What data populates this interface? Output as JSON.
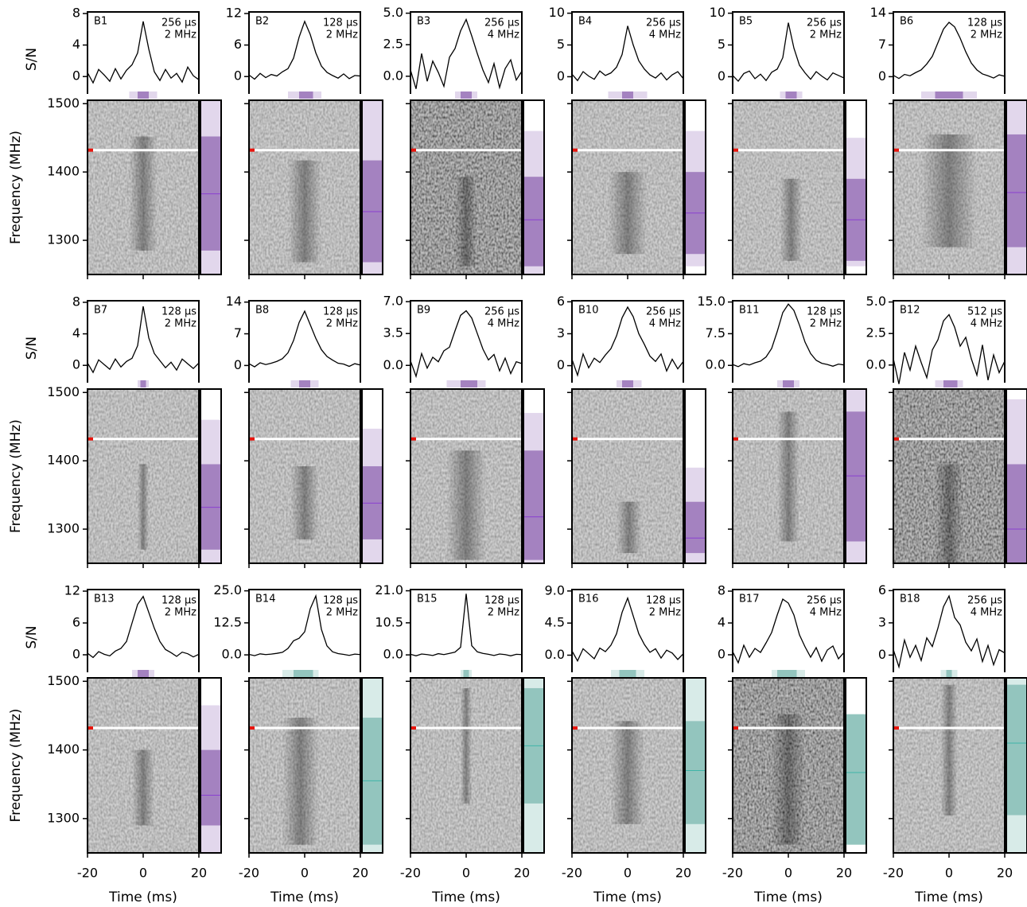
{
  "shared": {
    "x": [
      -20,
      -18,
      -16,
      -14,
      -12,
      -10,
      -8,
      -6,
      -4,
      -2,
      0,
      2,
      4,
      6,
      8,
      10,
      12,
      14,
      16,
      18,
      20
    ],
    "xlim": [
      -20,
      20
    ],
    "xticks": [
      -20,
      0,
      20
    ],
    "xlabel": "Time (ms)",
    "ylabel": "S/N",
    "freq_label": "Frequency (MHz)",
    "freq_lim": [
      1250,
      1505
    ],
    "freq_ticks": [
      1300,
      1400,
      1500
    ],
    "mask_freq": 1432
  },
  "chart_data": [
    {
      "type": "line",
      "title": "B1",
      "time_resolution": "256 µs",
      "freq_resolution": "2 MHz",
      "ylim": [
        -2.2,
        8.2
      ],
      "yticks": [
        0,
        4,
        8
      ],
      "values": [
        0.5,
        -0.8,
        0.9,
        0.2,
        -0.6,
        1.0,
        -0.3,
        0.8,
        1.5,
        3.0,
        7.0,
        3.5,
        0.6,
        -0.5,
        0.9,
        -0.2,
        0.4,
        -0.7,
        1.2,
        0.1,
        -0.4
      ],
      "time_window": [
        -2,
        2
      ],
      "time_window_outer": [
        -5,
        5
      ],
      "band": [
        1285,
        1452
      ],
      "band_outer": [
        1250,
        1505
      ],
      "center_freq": 1368,
      "color": "#a482c0",
      "light_color": "#e2d7ec"
    },
    {
      "type": "line",
      "title": "B2",
      "time_resolution": "128 µs",
      "freq_resolution": "2 MHz",
      "ylim": [
        -3.3,
        12.3
      ],
      "yticks": [
        0,
        6,
        12
      ],
      "values": [
        0.3,
        -0.5,
        0.6,
        -0.2,
        0.4,
        0.1,
        0.9,
        1.5,
        3.5,
        7.5,
        10.5,
        8.0,
        4.5,
        2.0,
        0.8,
        0.2,
        -0.3,
        0.5,
        -0.4,
        0.2,
        0.1
      ],
      "time_window": [
        -2,
        3
      ],
      "time_window_outer": [
        -6,
        6
      ],
      "band": [
        1268,
        1417
      ],
      "band_outer": [
        1250,
        1505
      ],
      "center_freq": 1342,
      "color": "#a482c0",
      "light_color": "#e2d7ec"
    },
    {
      "type": "line",
      "title": "B3",
      "time_resolution": "256 µs",
      "freq_resolution": "4 MHz",
      "ylim": [
        -1.4,
        5.1
      ],
      "yticks": [
        {
          "value": 0,
          "label": "0.0"
        },
        2.5,
        {
          "value": 5,
          "label": "5.0"
        }
      ],
      "values": [
        0.5,
        -1.0,
        1.8,
        -0.4,
        1.2,
        0.3,
        -0.8,
        1.5,
        2.2,
        3.6,
        4.5,
        3.2,
        1.8,
        0.5,
        -0.5,
        1.0,
        -0.9,
        0.6,
        1.3,
        -0.3,
        0.4
      ],
      "time_window": [
        -2,
        2
      ],
      "time_window_outer": [
        -4,
        4
      ],
      "band": [
        1262,
        1393
      ],
      "band_outer": [
        1250,
        1460
      ],
      "center_freq": 1330,
      "color": "#a482c0",
      "light_color": "#e2d7ec"
    },
    {
      "type": "line",
      "title": "B4",
      "time_resolution": "256 µs",
      "freq_resolution": "4 MHz",
      "ylim": [
        -2.7,
        10.2
      ],
      "yticks": [
        0,
        5,
        10
      ],
      "values": [
        0.4,
        -0.6,
        0.8,
        0.1,
        -0.4,
        0.9,
        0.2,
        0.6,
        1.5,
        3.5,
        8.0,
        5.0,
        2.5,
        1.2,
        0.3,
        -0.2,
        0.6,
        -0.5,
        0.3,
        0.8,
        -0.3
      ],
      "time_window": [
        -2,
        2
      ],
      "time_window_outer": [
        -7,
        7
      ],
      "band": [
        1280,
        1400
      ],
      "band_outer": [
        1262,
        1460
      ],
      "center_freq": 1340,
      "color": "#a482c0",
      "light_color": "#e2d7ec"
    },
    {
      "type": "line",
      "title": "B5",
      "time_resolution": "256 µs",
      "freq_resolution": "2 MHz",
      "ylim": [
        -2.7,
        10.2
      ],
      "yticks": [
        0,
        5,
        10
      ],
      "values": [
        0.2,
        -0.7,
        0.5,
        0.9,
        -0.3,
        0.4,
        -0.6,
        0.7,
        1.2,
        3.0,
        8.5,
        4.5,
        1.8,
        0.6,
        -0.4,
        0.8,
        0.1,
        -0.5,
        0.6,
        0.2,
        -0.2
      ],
      "time_window": [
        -1,
        3
      ],
      "time_window_outer": [
        -3,
        5
      ],
      "band": [
        1270,
        1390
      ],
      "band_outer": [
        1262,
        1450
      ],
      "center_freq": 1330,
      "color": "#a482c0",
      "light_color": "#e2d7ec"
    },
    {
      "type": "line",
      "title": "B6",
      "time_resolution": "128 µs",
      "freq_resolution": "2 MHz",
      "ylim": [
        -3.8,
        14.3
      ],
      "yticks": [
        0,
        7,
        14
      ],
      "values": [
        0.3,
        -0.4,
        0.5,
        0.2,
        0.9,
        1.5,
        2.8,
        4.5,
        7.5,
        10.5,
        12.0,
        11.0,
        8.5,
        5.5,
        3.0,
        1.5,
        0.6,
        0.2,
        -0.3,
        0.4,
        0.1
      ],
      "time_window": [
        -5,
        5
      ],
      "time_window_outer": [
        -10,
        10
      ],
      "band": [
        1290,
        1455
      ],
      "band_outer": [
        1250,
        1505
      ],
      "center_freq": 1370,
      "color": "#a482c0",
      "light_color": "#e2d7ec"
    },
    {
      "type": "line",
      "title": "B7",
      "time_resolution": "128 µs",
      "freq_resolution": "2 MHz",
      "ylim": [
        -2.2,
        8.2
      ],
      "yticks": [
        0,
        4,
        8
      ],
      "values": [
        0.3,
        -0.9,
        0.7,
        0.1,
        -0.5,
        0.8,
        -0.2,
        0.5,
        0.9,
        2.5,
        7.5,
        3.5,
        1.5,
        0.6,
        -0.3,
        0.4,
        -0.6,
        0.8,
        0.2,
        -0.4,
        0.3
      ],
      "time_window": [
        -1,
        1
      ],
      "time_window_outer": [
        -2,
        2
      ],
      "band": [
        1270,
        1395
      ],
      "band_outer": [
        1250,
        1460
      ],
      "center_freq": 1332,
      "color": "#a482c0",
      "light_color": "#e2d7ec"
    },
    {
      "type": "line",
      "title": "B8",
      "time_resolution": "128 µs",
      "freq_resolution": "2 MHz",
      "ylim": [
        -3.8,
        14.3
      ],
      "yticks": [
        0,
        7,
        14
      ],
      "values": [
        0.4,
        -0.3,
        0.6,
        0.2,
        0.5,
        0.9,
        1.5,
        2.8,
        5.5,
        9.5,
        12.0,
        9.0,
        6.0,
        3.5,
        2.0,
        1.2,
        0.5,
        0.3,
        -0.2,
        0.4,
        0.1
      ],
      "time_window": [
        -2,
        2
      ],
      "time_window_outer": [
        -5,
        5
      ],
      "band": [
        1285,
        1392
      ],
      "band_outer": [
        1250,
        1447
      ],
      "center_freq": 1338,
      "color": "#a482c0",
      "light_color": "#e2d7ec"
    },
    {
      "type": "line",
      "title": "B9",
      "time_resolution": "256 µs",
      "freq_resolution": "4 MHz",
      "ylim": [
        -1.9,
        7.1
      ],
      "yticks": [
        {
          "value": 0,
          "label": "0.0"
        },
        3.5,
        {
          "value": 7,
          "label": "7.0"
        }
      ],
      "values": [
        0.5,
        -1.2,
        1.3,
        -0.3,
        0.9,
        0.4,
        1.6,
        2.0,
        3.8,
        5.5,
        6.0,
        5.2,
        3.5,
        1.8,
        0.6,
        1.2,
        -0.6,
        0.8,
        -0.9,
        0.4,
        0.2
      ],
      "time_window": [
        -2,
        4
      ],
      "time_window_outer": [
        -7,
        7
      ],
      "band": [
        1255,
        1415
      ],
      "band_outer": [
        1250,
        1470
      ],
      "center_freq": 1318,
      "color": "#a482c0",
      "light_color": "#e2d7ec"
    },
    {
      "type": "line",
      "title": "B10",
      "time_resolution": "256 µs",
      "freq_resolution": "4 MHz",
      "ylim": [
        -1.6,
        6.1
      ],
      "yticks": [
        0,
        3,
        6
      ],
      "values": [
        0.6,
        -0.9,
        1.1,
        -0.2,
        0.7,
        0.3,
        1.0,
        1.6,
        2.8,
        4.5,
        5.5,
        4.6,
        3.0,
        2.0,
        0.9,
        0.4,
        1.1,
        -0.5,
        0.6,
        -0.3,
        0.4
      ],
      "time_window": [
        -2,
        2
      ],
      "time_window_outer": [
        -4,
        5
      ],
      "band": [
        1265,
        1340
      ],
      "band_outer": [
        1250,
        1390
      ],
      "center_freq": 1287,
      "color": "#a482c0",
      "light_color": "#e2d7ec"
    },
    {
      "type": "line",
      "title": "B11",
      "time_resolution": "128 µs",
      "freq_resolution": "2 MHz",
      "ylim": [
        -4.1,
        15.3
      ],
      "yticks": [
        {
          "value": 0,
          "label": "0.0"
        },
        7.5,
        {
          "value": 15,
          "label": "15.0"
        }
      ],
      "values": [
        0.2,
        -0.3,
        0.4,
        0.1,
        0.6,
        1.0,
        2.0,
        4.0,
        8.0,
        12.5,
        14.5,
        13.0,
        9.5,
        5.5,
        2.8,
        1.2,
        0.5,
        0.2,
        -0.2,
        0.3,
        0.1
      ],
      "time_window": [
        -2,
        2
      ],
      "time_window_outer": [
        -4,
        4
      ],
      "band": [
        1282,
        1472
      ],
      "band_outer": [
        1250,
        1505
      ],
      "center_freq": 1378,
      "color": "#a482c0",
      "light_color": "#e2d7ec"
    },
    {
      "type": "line",
      "title": "B12",
      "time_resolution": "512 µs",
      "freq_resolution": "4 MHz",
      "ylim": [
        -1.4,
        5.1
      ],
      "yticks": [
        {
          "value": 0,
          "label": "0.0"
        },
        2.5,
        {
          "value": 5,
          "label": "5.0"
        }
      ],
      "values": [
        0.5,
        -1.5,
        1.0,
        -0.4,
        1.5,
        0.2,
        -1.0,
        1.2,
        2.0,
        3.5,
        4.0,
        3.0,
        1.5,
        2.2,
        0.5,
        -0.8,
        1.6,
        -1.2,
        0.8,
        -0.6,
        0.3
      ],
      "time_window": [
        -2,
        3
      ],
      "time_window_outer": [
        -5,
        5
      ],
      "band": [
        1250,
        1395
      ],
      "band_outer": [
        1250,
        1490
      ],
      "center_freq": 1300,
      "color": "#a482c0",
      "light_color": "#e2d7ec"
    },
    {
      "type": "line",
      "title": "B13",
      "time_resolution": "128 µs",
      "freq_resolution": "2 MHz",
      "ylim": [
        -3.3,
        12.3
      ],
      "yticks": [
        0,
        6,
        12
      ],
      "values": [
        0.3,
        -0.5,
        0.6,
        0.1,
        -0.2,
        0.7,
        1.2,
        2.5,
        6.0,
        9.5,
        11.0,
        8.0,
        5.0,
        2.5,
        1.0,
        0.4,
        -0.3,
        0.5,
        0.2,
        -0.4,
        0.1
      ],
      "time_window": [
        -2,
        2
      ],
      "time_window_outer": [
        -4,
        4
      ],
      "band": [
        1290,
        1400
      ],
      "band_outer": [
        1250,
        1465
      ],
      "center_freq": 1334,
      "color": "#a482c0",
      "light_color": "#e2d7ec"
    },
    {
      "type": "line",
      "title": "B14",
      "time_resolution": "128 µs",
      "freq_resolution": "2 MHz",
      "ylim": [
        -6.8,
        25.5
      ],
      "yticks": [
        {
          "value": 0,
          "label": "0.0"
        },
        12.5,
        {
          "value": 25,
          "label": "25.0"
        }
      ],
      "values": [
        0.2,
        -0.3,
        0.4,
        0.1,
        0.3,
        0.6,
        1.0,
        2.5,
        5.5,
        6.5,
        9.0,
        18.0,
        23.0,
        10.0,
        3.5,
        1.2,
        0.5,
        0.2,
        -0.2,
        0.3,
        0.1
      ],
      "time_window": [
        -4,
        3
      ],
      "time_window_outer": [
        -8,
        5
      ],
      "band": [
        1262,
        1447
      ],
      "band_outer": [
        1250,
        1505
      ],
      "center_freq": 1355,
      "color": "#93c5be",
      "light_color": "#d8ebe8"
    },
    {
      "type": "line",
      "title": "B15",
      "time_resolution": "128 µs",
      "freq_resolution": "2 MHz",
      "ylim": [
        -5.7,
        21.4
      ],
      "yticks": [
        {
          "value": 0,
          "label": "0.0"
        },
        10.5,
        {
          "value": 21,
          "label": "21.0"
        }
      ],
      "values": [
        0.2,
        -0.3,
        0.3,
        0.1,
        -0.2,
        0.4,
        0.1,
        0.5,
        0.9,
        2.5,
        20.0,
        3.0,
        1.0,
        0.5,
        0.2,
        -0.2,
        0.3,
        0.1,
        -0.3,
        0.2,
        0.1
      ],
      "time_window": [
        -1,
        1
      ],
      "time_window_outer": [
        -2,
        2
      ],
      "band": [
        1322,
        1490
      ],
      "band_outer": [
        1250,
        1505
      ],
      "center_freq": 1406,
      "color": "#93c5be",
      "light_color": "#d8ebe8"
    },
    {
      "type": "line",
      "title": "B16",
      "time_resolution": "128 µs",
      "freq_resolution": "2 MHz",
      "ylim": [
        -2.4,
        9.2
      ],
      "yticks": [
        {
          "value": 0,
          "label": "0.0"
        },
        4.5,
        {
          "value": 9,
          "label": "9.0"
        }
      ],
      "values": [
        0.6,
        -0.8,
        0.9,
        0.2,
        -0.5,
        1.0,
        0.5,
        1.4,
        3.0,
        6.0,
        8.0,
        5.5,
        3.0,
        1.5,
        0.4,
        0.9,
        -0.4,
        0.7,
        0.3,
        -0.6,
        0.2
      ],
      "time_window": [
        -3,
        3
      ],
      "time_window_outer": [
        -6,
        6
      ],
      "band": [
        1292,
        1442
      ],
      "band_outer": [
        1250,
        1505
      ],
      "center_freq": 1370,
      "color": "#93c5be",
      "light_color": "#d8ebe8"
    },
    {
      "type": "line",
      "title": "B17",
      "time_resolution": "256 µs",
      "freq_resolution": "4 MHz",
      "ylim": [
        -2.2,
        8.2
      ],
      "yticks": [
        0,
        4,
        8
      ],
      "values": [
        0.4,
        -1.0,
        1.2,
        -0.3,
        0.8,
        0.3,
        1.5,
        2.8,
        5.0,
        7.0,
        6.5,
        5.0,
        2.5,
        1.0,
        -0.3,
        0.9,
        -0.8,
        0.6,
        1.1,
        -0.5,
        0.3
      ],
      "time_window": [
        -4,
        3
      ],
      "time_window_outer": [
        -6,
        6
      ],
      "band": [
        1262,
        1452
      ],
      "band_outer": [
        1262,
        1452
      ],
      "center_freq": 1367,
      "color": "#93c5be",
      "light_color": "#d8ebe8"
    },
    {
      "type": "line",
      "title": "B18",
      "time_resolution": "256 µs",
      "freq_resolution": "4 MHz",
      "ylim": [
        -1.6,
        6.1
      ],
      "yticks": [
        0,
        3,
        6
      ],
      "values": [
        0.5,
        -1.1,
        1.4,
        -0.2,
        0.9,
        -0.5,
        1.6,
        0.8,
        2.5,
        4.5,
        5.5,
        3.5,
        2.8,
        1.2,
        0.4,
        1.5,
        -0.6,
        0.9,
        -0.9,
        0.5,
        0.2
      ],
      "time_window": [
        -1,
        1
      ],
      "time_window_outer": [
        -3,
        3
      ],
      "band": [
        1305,
        1495
      ],
      "band_outer": [
        1250,
        1505
      ],
      "center_freq": 1410,
      "color": "#93c5be",
      "light_color": "#d8ebe8"
    }
  ]
}
